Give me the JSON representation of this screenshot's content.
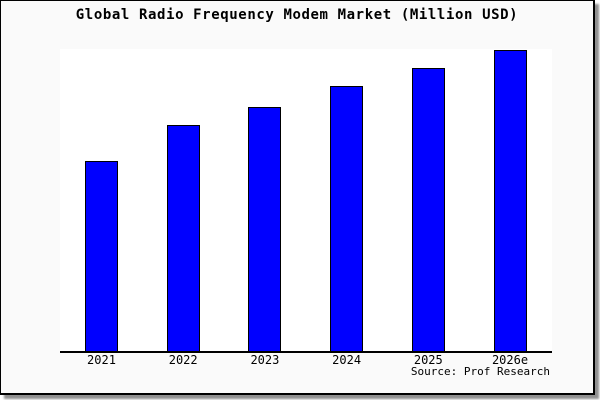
{
  "window": {
    "background_color": "#fafafa",
    "plot_background_color": "#ffffff",
    "frame_border_color": "#000000",
    "shadow_color": "#8f8f8f"
  },
  "title": "Global Radio Frequency Modem Market (Million USD)",
  "source": "Source: Prof Research",
  "chart_data": {
    "type": "bar",
    "title": "Global Radio Frequency Modem Market (Million USD)",
    "categories": [
      "2021",
      "2022",
      "2023",
      "2024",
      "2025",
      "2026e"
    ],
    "values": [
      63,
      75,
      81,
      88,
      94,
      100
    ],
    "value_scale_note": "y-axis is not drawn or labeled in the chart; values are relative bar heights indexed to 2026e = 100",
    "xlabel": "",
    "ylabel": "",
    "ylim": [
      0,
      100.5
    ],
    "grid": false,
    "legend": false,
    "bar_color": "#0000ff",
    "bar_border_color": "#000000",
    "axis_line_color": "#000000",
    "source_label": "Source: Prof Research"
  }
}
